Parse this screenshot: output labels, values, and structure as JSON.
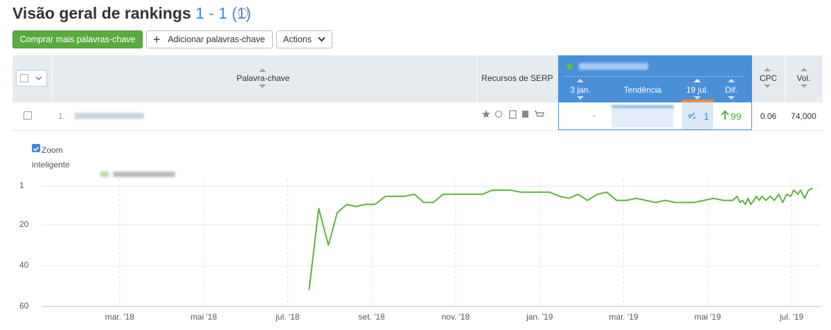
{
  "header": {
    "title": "Visão geral de rankings",
    "count": "1 - 1 (1)"
  },
  "toolbar": {
    "buy_button": "Comprar mais palavras-chave",
    "add_button": "Adicionar palavras-chave",
    "actions_button": "Actions"
  },
  "table": {
    "columns": {
      "keyword": "Palavra-chave",
      "serp": "Recursos de SERP",
      "start_date": "3 jan.",
      "trend": "Tendência",
      "end_date": "19 jul.",
      "diff": "Dif.",
      "cpc": "CPC",
      "volume": "Vol."
    },
    "rows": [
      {
        "index": "1.",
        "start_position": "-",
        "position": 1,
        "diff": 99,
        "cpc": 0.06,
        "volume": "74,000"
      }
    ]
  },
  "zoom": {
    "label": "Zoom inteligente"
  },
  "chart_data": {
    "type": "line",
    "x": [
      6.51,
      6.74,
      6.97,
      7.18,
      7.41,
      7.62,
      7.85,
      8.08,
      8.33,
      8.79,
      9.02,
      9.24,
      9.47,
      9.7,
      10.64,
      10.87,
      11.3,
      11.55,
      12.24,
      12.47,
      12.7,
      12.91,
      13.14,
      13.37,
      13.6,
      13.83,
      14.07,
      14.3,
      14.53,
      14.76,
      14.99,
      15.22,
      15.68,
      15.91,
      16.14,
      16.37,
      16.6,
      16.7,
      16.77,
      16.83,
      16.9,
      16.96,
      17.03,
      17.1,
      17.16,
      17.23,
      17.29,
      17.39,
      17.49,
      17.59,
      17.69,
      17.79,
      17.88,
      17.98,
      18.05,
      18.15,
      18.21,
      18.31,
      18.4,
      18.5
    ],
    "series": [
      {
        "color": "#5fb13d",
        "values": [
          52,
          12,
          30,
          14,
          10,
          11,
          10,
          10,
          6,
          6,
          5,
          9,
          9,
          5,
          5,
          3,
          3,
          4,
          4,
          6,
          7,
          5,
          8,
          5,
          4,
          8,
          8,
          7,
          8,
          9,
          8,
          9,
          9,
          8,
          7,
          8,
          8,
          6,
          9,
          8,
          10,
          7,
          10,
          8,
          6,
          8,
          6,
          8,
          6,
          8,
          5,
          9,
          5,
          6,
          3,
          5,
          3,
          7,
          3,
          2
        ]
      }
    ],
    "xlim": [
      0.14,
      18.69
    ],
    "xticks": [
      {
        "value": 2,
        "label": "mar. '18"
      },
      {
        "value": 4,
        "label": "mai '18"
      },
      {
        "value": 6,
        "label": "jul. '18"
      },
      {
        "value": 8,
        "label": "set. '18"
      },
      {
        "value": 10,
        "label": "nov. '18"
      },
      {
        "value": 12,
        "label": "jan. '19"
      },
      {
        "value": 14,
        "label": "mar. '19"
      },
      {
        "value": 16,
        "label": "mai '19"
      },
      {
        "value": 18,
        "label": "jul. '19"
      }
    ],
    "ylim": [
      60,
      1
    ],
    "yticks": [
      1,
      20,
      40,
      60
    ],
    "grid": true
  }
}
